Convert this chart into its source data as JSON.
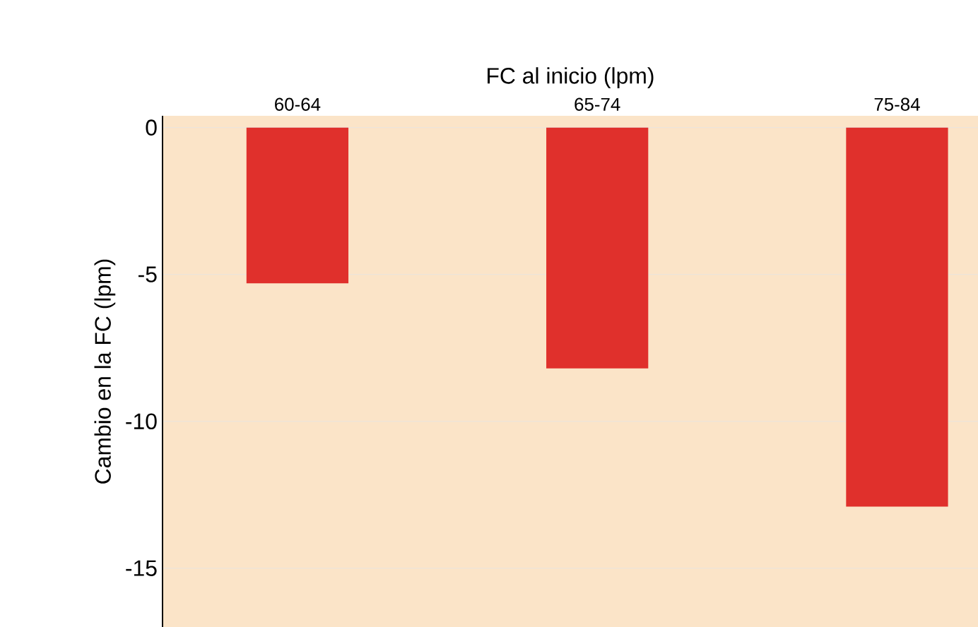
{
  "chart_data": {
    "type": "bar",
    "xlabel": "FC al inicio (lpm)",
    "ylabel": "Cambio en la FC (lpm)",
    "categories": [
      "60-64",
      "65-74",
      "75-84"
    ],
    "values": [
      -5.3,
      -8.2,
      -12.9
    ],
    "color": "#e0302c",
    "ylim": [
      -17,
      0.4
    ],
    "yticks": [
      -15,
      -10,
      -5,
      0
    ],
    "grid": "y"
  }
}
